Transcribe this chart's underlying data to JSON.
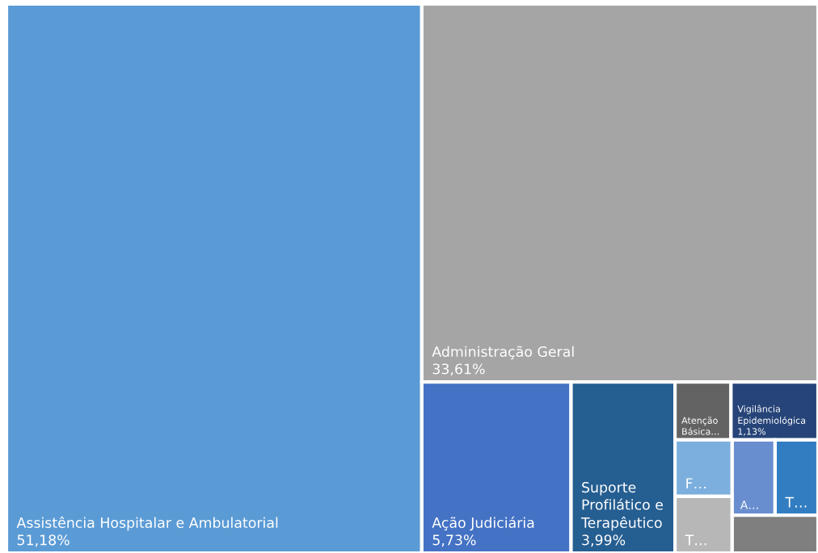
{
  "chart_data": {
    "type": "other",
    "categories": [
      "Assistência Hospitalar e Ambulatorial",
      "Administração Geral",
      "Ação Judiciária",
      "Suporte Profilático e Terapêutico",
      "Atenção Básica…",
      "Vigilância Epidemiológica",
      "F…",
      "T…",
      "A…",
      "T…",
      null
    ],
    "values": [
      51.18,
      33.61,
      5.73,
      3.99,
      null,
      1.13,
      null,
      null,
      null,
      null,
      null
    ],
    "value_labels": [
      "51,18%",
      "33,61%",
      "5,73%",
      "3,99%",
      null,
      "1,13%",
      null,
      null,
      null,
      null,
      null
    ],
    "colors": [
      "#5b9bd5",
      "#a5a5a5",
      "#4472c4",
      "#255e91",
      "#636363",
      "#264478",
      "#7cafdd",
      "#b7b7b7",
      "#698ed0",
      "#327dc2",
      "#7f7f7f"
    ]
  }
}
